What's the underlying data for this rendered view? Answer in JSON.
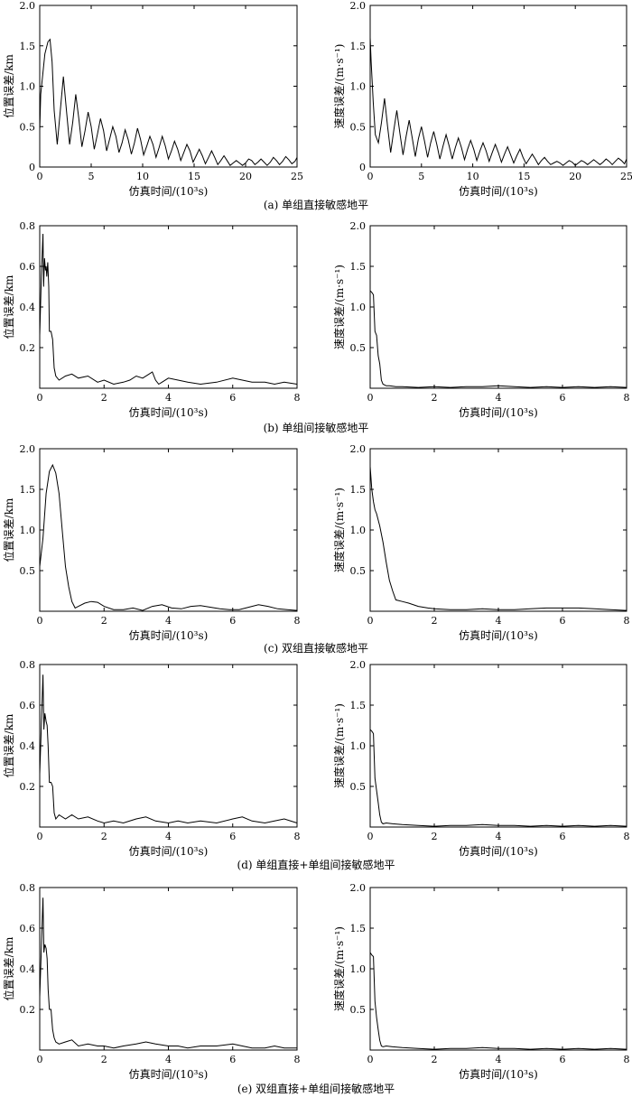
{
  "figure": {
    "captions": [
      "(a) 单组直接敏感地平",
      "(b) 单组间接敏感地平",
      "(c) 双组直接敏感地平",
      "(d) 单组直接+单组间接敏感地平",
      "(e) 双组直接+单组间接敏感地平"
    ]
  },
  "chart_data": [
    {
      "type": "line",
      "row": 0,
      "col": 0,
      "xlabel": "仿真时间/(10³s)",
      "ylabel": "位置误差/km",
      "xlim": [
        0,
        25
      ],
      "ylim": [
        0,
        2.0
      ],
      "xticks": [
        "0",
        "5",
        "10",
        "15",
        "20",
        "25"
      ],
      "yticks": [
        "0",
        "0.5",
        "1.0",
        "1.5",
        "2.0"
      ],
      "x": [
        0,
        0.1,
        0.5,
        0.8,
        1.0,
        1.2,
        1.4,
        1.7,
        2.0,
        2.3,
        2.6,
        2.9,
        3.2,
        3.5,
        3.8,
        4.1,
        4.4,
        4.7,
        5.0,
        5.3,
        5.6,
        5.9,
        6.2,
        6.5,
        6.8,
        7.1,
        7.4,
        7.7,
        8.0,
        8.3,
        8.6,
        8.9,
        9.2,
        9.5,
        9.8,
        10.1,
        10.4,
        10.7,
        11.0,
        11.3,
        11.6,
        11.9,
        12.2,
        12.5,
        12.8,
        13.1,
        13.4,
        13.7,
        14.0,
        14.3,
        14.6,
        14.9,
        15.2,
        15.5,
        15.8,
        16.1,
        16.4,
        16.7,
        17.0,
        17.3,
        17.6,
        17.9,
        18.2,
        18.5,
        18.8,
        19.1,
        19.4,
        19.7,
        20.0,
        20.3,
        20.6,
        20.9,
        21.2,
        21.5,
        21.8,
        22.1,
        22.4,
        22.7,
        23.0,
        23.3,
        23.6,
        23.9,
        24.2,
        24.5,
        24.8,
        25.0
      ],
      "y": [
        0.45,
        0.9,
        1.4,
        1.55,
        1.58,
        1.3,
        0.7,
        0.28,
        0.7,
        1.12,
        0.7,
        0.28,
        0.55,
        0.9,
        0.6,
        0.25,
        0.45,
        0.68,
        0.5,
        0.22,
        0.4,
        0.6,
        0.45,
        0.2,
        0.35,
        0.5,
        0.38,
        0.18,
        0.3,
        0.46,
        0.34,
        0.16,
        0.3,
        0.48,
        0.34,
        0.15,
        0.26,
        0.38,
        0.28,
        0.12,
        0.24,
        0.38,
        0.26,
        0.1,
        0.2,
        0.32,
        0.22,
        0.08,
        0.18,
        0.28,
        0.2,
        0.06,
        0.14,
        0.22,
        0.14,
        0.04,
        0.12,
        0.2,
        0.12,
        0.03,
        0.08,
        0.14,
        0.08,
        0.02,
        0.05,
        0.08,
        0.05,
        0.02,
        0.05,
        0.1,
        0.08,
        0.03,
        0.06,
        0.1,
        0.06,
        0.02,
        0.06,
        0.12,
        0.08,
        0.03,
        0.07,
        0.13,
        0.09,
        0.04,
        0.07,
        0.12
      ]
    },
    {
      "type": "line",
      "row": 0,
      "col": 1,
      "xlabel": "仿真时间/(10³s)",
      "ylabel": "速度误差/(m·s⁻¹)",
      "xlim": [
        0,
        25
      ],
      "ylim": [
        0,
        2.0
      ],
      "xticks": [
        "0",
        "5",
        "10",
        "15",
        "20",
        "25"
      ],
      "yticks": [
        "0",
        "0.5",
        "1.0",
        "1.5",
        "2.0"
      ],
      "x": [
        0,
        0.1,
        0.3,
        0.5,
        0.8,
        1.1,
        1.4,
        1.7,
        2.0,
        2.3,
        2.6,
        2.9,
        3.2,
        3.5,
        3.8,
        4.1,
        4.4,
        4.7,
        5.0,
        5.3,
        5.6,
        5.9,
        6.2,
        6.5,
        6.8,
        7.1,
        7.4,
        7.7,
        8.0,
        8.3,
        8.6,
        8.9,
        9.2,
        9.5,
        9.8,
        10.1,
        10.4,
        10.7,
        11.0,
        11.3,
        11.6,
        11.9,
        12.2,
        12.5,
        12.8,
        13.1,
        13.4,
        13.7,
        14.0,
        14.3,
        14.6,
        14.9,
        15.2,
        15.5,
        15.8,
        16.1,
        16.4,
        16.7,
        17.0,
        17.3,
        17.6,
        17.9,
        18.2,
        18.5,
        18.8,
        19.1,
        19.4,
        19.7,
        20.0,
        20.3,
        20.6,
        20.9,
        21.2,
        21.5,
        21.8,
        22.1,
        22.4,
        22.7,
        23.0,
        23.3,
        23.6,
        23.9,
        24.2,
        24.5,
        24.8,
        25.0
      ],
      "y": [
        1.6,
        1.3,
        0.8,
        0.4,
        0.3,
        0.55,
        0.85,
        0.5,
        0.18,
        0.45,
        0.7,
        0.42,
        0.15,
        0.38,
        0.58,
        0.36,
        0.13,
        0.35,
        0.5,
        0.32,
        0.12,
        0.3,
        0.44,
        0.28,
        0.1,
        0.26,
        0.4,
        0.26,
        0.1,
        0.24,
        0.36,
        0.24,
        0.09,
        0.22,
        0.33,
        0.22,
        0.08,
        0.2,
        0.3,
        0.2,
        0.07,
        0.18,
        0.28,
        0.18,
        0.06,
        0.16,
        0.25,
        0.15,
        0.05,
        0.14,
        0.22,
        0.12,
        0.04,
        0.1,
        0.16,
        0.1,
        0.03,
        0.08,
        0.12,
        0.07,
        0.03,
        0.05,
        0.07,
        0.05,
        0.02,
        0.05,
        0.08,
        0.06,
        0.02,
        0.05,
        0.08,
        0.06,
        0.03,
        0.06,
        0.09,
        0.06,
        0.03,
        0.06,
        0.1,
        0.07,
        0.03,
        0.07,
        0.11,
        0.08,
        0.04,
        0.1
      ]
    },
    {
      "type": "line",
      "row": 1,
      "col": 0,
      "xlabel": "仿真时间/(10³s)",
      "ylabel": "位置误差/km",
      "xlim": [
        0,
        8
      ],
      "ylim": [
        0,
        0.8
      ],
      "xticks": [
        "0",
        "2",
        "4",
        "6",
        "8"
      ],
      "yticks": [
        "0.2",
        "0.4",
        "0.6",
        "0.8"
      ],
      "x": [
        0,
        0.05,
        0.1,
        0.12,
        0.15,
        0.18,
        0.2,
        0.22,
        0.25,
        0.28,
        0.3,
        0.35,
        0.4,
        0.45,
        0.5,
        0.6,
        0.8,
        1.0,
        1.2,
        1.5,
        1.8,
        2.0,
        2.3,
        2.6,
        2.8,
        3.0,
        3.2,
        3.4,
        3.5,
        3.6,
        3.7,
        3.8,
        4.0,
        4.3,
        4.6,
        5.0,
        5.5,
        6.0,
        6.3,
        6.6,
        7.0,
        7.3,
        7.6,
        8.0
      ],
      "y": [
        0.26,
        0.55,
        0.76,
        0.5,
        0.64,
        0.58,
        0.6,
        0.55,
        0.62,
        0.5,
        0.28,
        0.28,
        0.24,
        0.1,
        0.06,
        0.04,
        0.06,
        0.07,
        0.05,
        0.06,
        0.03,
        0.04,
        0.02,
        0.03,
        0.04,
        0.06,
        0.05,
        0.07,
        0.08,
        0.04,
        0.02,
        0.03,
        0.05,
        0.04,
        0.03,
        0.02,
        0.03,
        0.05,
        0.04,
        0.03,
        0.03,
        0.02,
        0.03,
        0.02
      ]
    },
    {
      "type": "line",
      "row": 1,
      "col": 1,
      "xlabel": "仿真时间/(10³s)",
      "ylabel": "速度误差/(m·s⁻¹)",
      "xlim": [
        0,
        8
      ],
      "ylim": [
        0,
        2.0
      ],
      "xticks": [
        "0",
        "2",
        "4",
        "6",
        "8"
      ],
      "yticks": [
        "0.5",
        "1.0",
        "1.5",
        "2.0"
      ],
      "x": [
        0,
        0.05,
        0.1,
        0.15,
        0.2,
        0.25,
        0.3,
        0.35,
        0.4,
        0.5,
        0.6,
        0.8,
        1.0,
        1.5,
        2.0,
        2.5,
        3.0,
        3.5,
        4.0,
        4.5,
        5.0,
        5.5,
        6.0,
        6.5,
        7.0,
        7.5,
        8.0
      ],
      "y": [
        1.2,
        1.18,
        1.15,
        0.7,
        0.65,
        0.4,
        0.3,
        0.1,
        0.05,
        0.03,
        0.03,
        0.02,
        0.02,
        0.01,
        0.02,
        0.01,
        0.02,
        0.02,
        0.03,
        0.02,
        0.01,
        0.02,
        0.01,
        0.02,
        0.01,
        0.02,
        0.01
      ]
    },
    {
      "type": "line",
      "row": 2,
      "col": 0,
      "xlabel": "仿真时间/(10³s)",
      "ylabel": "位置误差/km",
      "xlim": [
        0,
        8
      ],
      "ylim": [
        0,
        2.0
      ],
      "xticks": [
        "0",
        "2",
        "4",
        "6",
        "8"
      ],
      "yticks": [
        "0.5",
        "1.0",
        "1.5",
        "2.0"
      ],
      "x": [
        0,
        0.1,
        0.2,
        0.3,
        0.4,
        0.5,
        0.6,
        0.7,
        0.8,
        0.9,
        1.0,
        1.1,
        1.2,
        1.4,
        1.6,
        1.8,
        2.0,
        2.3,
        2.6,
        2.9,
        3.2,
        3.5,
        3.8,
        4.1,
        4.4,
        4.7,
        5.0,
        5.3,
        5.6,
        5.9,
        6.2,
        6.5,
        6.8,
        7.1,
        7.4,
        7.7,
        8.0
      ],
      "y": [
        0.55,
        0.9,
        1.45,
        1.72,
        1.8,
        1.7,
        1.45,
        1.0,
        0.55,
        0.3,
        0.12,
        0.04,
        0.06,
        0.1,
        0.12,
        0.11,
        0.06,
        0.02,
        0.02,
        0.04,
        0.01,
        0.06,
        0.08,
        0.04,
        0.03,
        0.06,
        0.07,
        0.05,
        0.03,
        0.02,
        0.02,
        0.05,
        0.08,
        0.06,
        0.03,
        0.02,
        0.01
      ]
    },
    {
      "type": "line",
      "row": 2,
      "col": 1,
      "xlabel": "仿真时间/(10³s)",
      "ylabel": "速度误差/(m·s⁻¹)",
      "xlim": [
        0,
        8
      ],
      "ylim": [
        0,
        2.0
      ],
      "xticks": [
        "0",
        "2",
        "4",
        "6",
        "8"
      ],
      "yticks": [
        "0.5",
        "1.0",
        "1.5",
        "2.0"
      ],
      "x": [
        0,
        0.05,
        0.1,
        0.15,
        0.2,
        0.3,
        0.4,
        0.5,
        0.6,
        0.7,
        0.8,
        1.0,
        1.2,
        1.5,
        1.8,
        2.0,
        2.5,
        3.0,
        3.5,
        4.0,
        4.5,
        5.0,
        5.5,
        6.0,
        6.5,
        7.0,
        7.5,
        8.0
      ],
      "y": [
        1.78,
        1.5,
        1.35,
        1.25,
        1.2,
        1.05,
        0.85,
        0.6,
        0.38,
        0.25,
        0.14,
        0.12,
        0.1,
        0.06,
        0.04,
        0.03,
        0.02,
        0.02,
        0.03,
        0.02,
        0.02,
        0.03,
        0.04,
        0.04,
        0.04,
        0.03,
        0.02,
        0.01
      ]
    },
    {
      "type": "line",
      "row": 3,
      "col": 0,
      "xlabel": "仿真时间/(10³s)",
      "ylabel": "位置误差/km",
      "xlim": [
        0,
        8
      ],
      "ylim": [
        0,
        0.8
      ],
      "xticks": [
        "0",
        "2",
        "4",
        "6",
        "8"
      ],
      "yticks": [
        "0.2",
        "0.4",
        "0.6",
        "0.8"
      ],
      "x": [
        0,
        0.05,
        0.1,
        0.13,
        0.16,
        0.2,
        0.23,
        0.26,
        0.3,
        0.35,
        0.4,
        0.45,
        0.5,
        0.6,
        0.8,
        1.0,
        1.2,
        1.5,
        1.8,
        2.0,
        2.3,
        2.6,
        3.0,
        3.3,
        3.6,
        4.0,
        4.3,
        4.6,
        5.0,
        5.5,
        6.0,
        6.3,
        6.6,
        7.0,
        7.3,
        7.6,
        8.0
      ],
      "y": [
        0.26,
        0.5,
        0.75,
        0.48,
        0.56,
        0.52,
        0.5,
        0.4,
        0.22,
        0.22,
        0.2,
        0.07,
        0.04,
        0.06,
        0.04,
        0.06,
        0.04,
        0.05,
        0.03,
        0.02,
        0.03,
        0.02,
        0.04,
        0.05,
        0.03,
        0.02,
        0.03,
        0.02,
        0.03,
        0.02,
        0.04,
        0.05,
        0.03,
        0.02,
        0.03,
        0.04,
        0.02
      ]
    },
    {
      "type": "line",
      "row": 3,
      "col": 1,
      "xlabel": "仿真时间/(10³s)",
      "ylabel": "速度误差/(m·s⁻¹)",
      "xlim": [
        0,
        8
      ],
      "ylim": [
        0,
        2.0
      ],
      "xticks": [
        "0",
        "2",
        "4",
        "6",
        "8"
      ],
      "yticks": [
        "0.5",
        "1.0",
        "1.5",
        "2.0"
      ],
      "x": [
        0,
        0.05,
        0.1,
        0.15,
        0.2,
        0.25,
        0.3,
        0.35,
        0.4,
        0.5,
        0.7,
        1.0,
        1.5,
        2.0,
        2.5,
        3.0,
        3.5,
        4.0,
        4.5,
        5.0,
        5.5,
        6.0,
        6.5,
        7.0,
        7.5,
        8.0
      ],
      "y": [
        1.2,
        1.18,
        1.15,
        0.6,
        0.45,
        0.3,
        0.15,
        0.06,
        0.04,
        0.05,
        0.04,
        0.03,
        0.02,
        0.01,
        0.02,
        0.02,
        0.03,
        0.02,
        0.02,
        0.01,
        0.02,
        0.01,
        0.02,
        0.01,
        0.02,
        0.01
      ]
    },
    {
      "type": "line",
      "row": 4,
      "col": 0,
      "xlabel": "仿真时间/(10³s)",
      "ylabel": "位置误差/km",
      "xlim": [
        0,
        8
      ],
      "ylim": [
        0,
        0.8
      ],
      "xticks": [
        "0",
        "2",
        "4",
        "6",
        "8"
      ],
      "yticks": [
        "0.2",
        "0.4",
        "0.6",
        "0.8"
      ],
      "x": [
        0,
        0.05,
        0.1,
        0.13,
        0.16,
        0.2,
        0.23,
        0.26,
        0.3,
        0.35,
        0.4,
        0.45,
        0.5,
        0.6,
        0.8,
        1.0,
        1.2,
        1.5,
        1.8,
        2.0,
        2.3,
        2.6,
        3.0,
        3.3,
        3.6,
        4.0,
        4.3,
        4.6,
        5.0,
        5.5,
        6.0,
        6.3,
        6.6,
        7.0,
        7.3,
        7.6,
        8.0
      ],
      "y": [
        0.26,
        0.5,
        0.75,
        0.48,
        0.52,
        0.5,
        0.45,
        0.3,
        0.2,
        0.2,
        0.1,
        0.06,
        0.04,
        0.03,
        0.04,
        0.05,
        0.02,
        0.03,
        0.02,
        0.02,
        0.01,
        0.02,
        0.03,
        0.04,
        0.03,
        0.02,
        0.02,
        0.01,
        0.02,
        0.02,
        0.03,
        0.02,
        0.01,
        0.01,
        0.02,
        0.01,
        0.01
      ]
    },
    {
      "type": "line",
      "row": 4,
      "col": 1,
      "xlabel": "仿真时间/(10³s)",
      "ylabel": "速度误差/(m·s⁻¹)",
      "xlim": [
        0,
        8
      ],
      "ylim": [
        0,
        2.0
      ],
      "xticks": [
        "0",
        "2",
        "4",
        "6",
        "8"
      ],
      "yticks": [
        "0.5",
        "1.0",
        "1.5",
        "2.0"
      ],
      "x": [
        0,
        0.05,
        0.1,
        0.15,
        0.2,
        0.25,
        0.3,
        0.35,
        0.4,
        0.5,
        0.7,
        1.0,
        1.5,
        2.0,
        2.5,
        3.0,
        3.5,
        4.0,
        4.5,
        5.0,
        5.5,
        6.0,
        6.5,
        7.0,
        7.5,
        8.0
      ],
      "y": [
        1.2,
        1.17,
        1.15,
        0.6,
        0.4,
        0.25,
        0.12,
        0.05,
        0.04,
        0.05,
        0.04,
        0.03,
        0.02,
        0.01,
        0.02,
        0.02,
        0.03,
        0.02,
        0.02,
        0.01,
        0.02,
        0.01,
        0.02,
        0.01,
        0.02,
        0.01
      ]
    }
  ]
}
